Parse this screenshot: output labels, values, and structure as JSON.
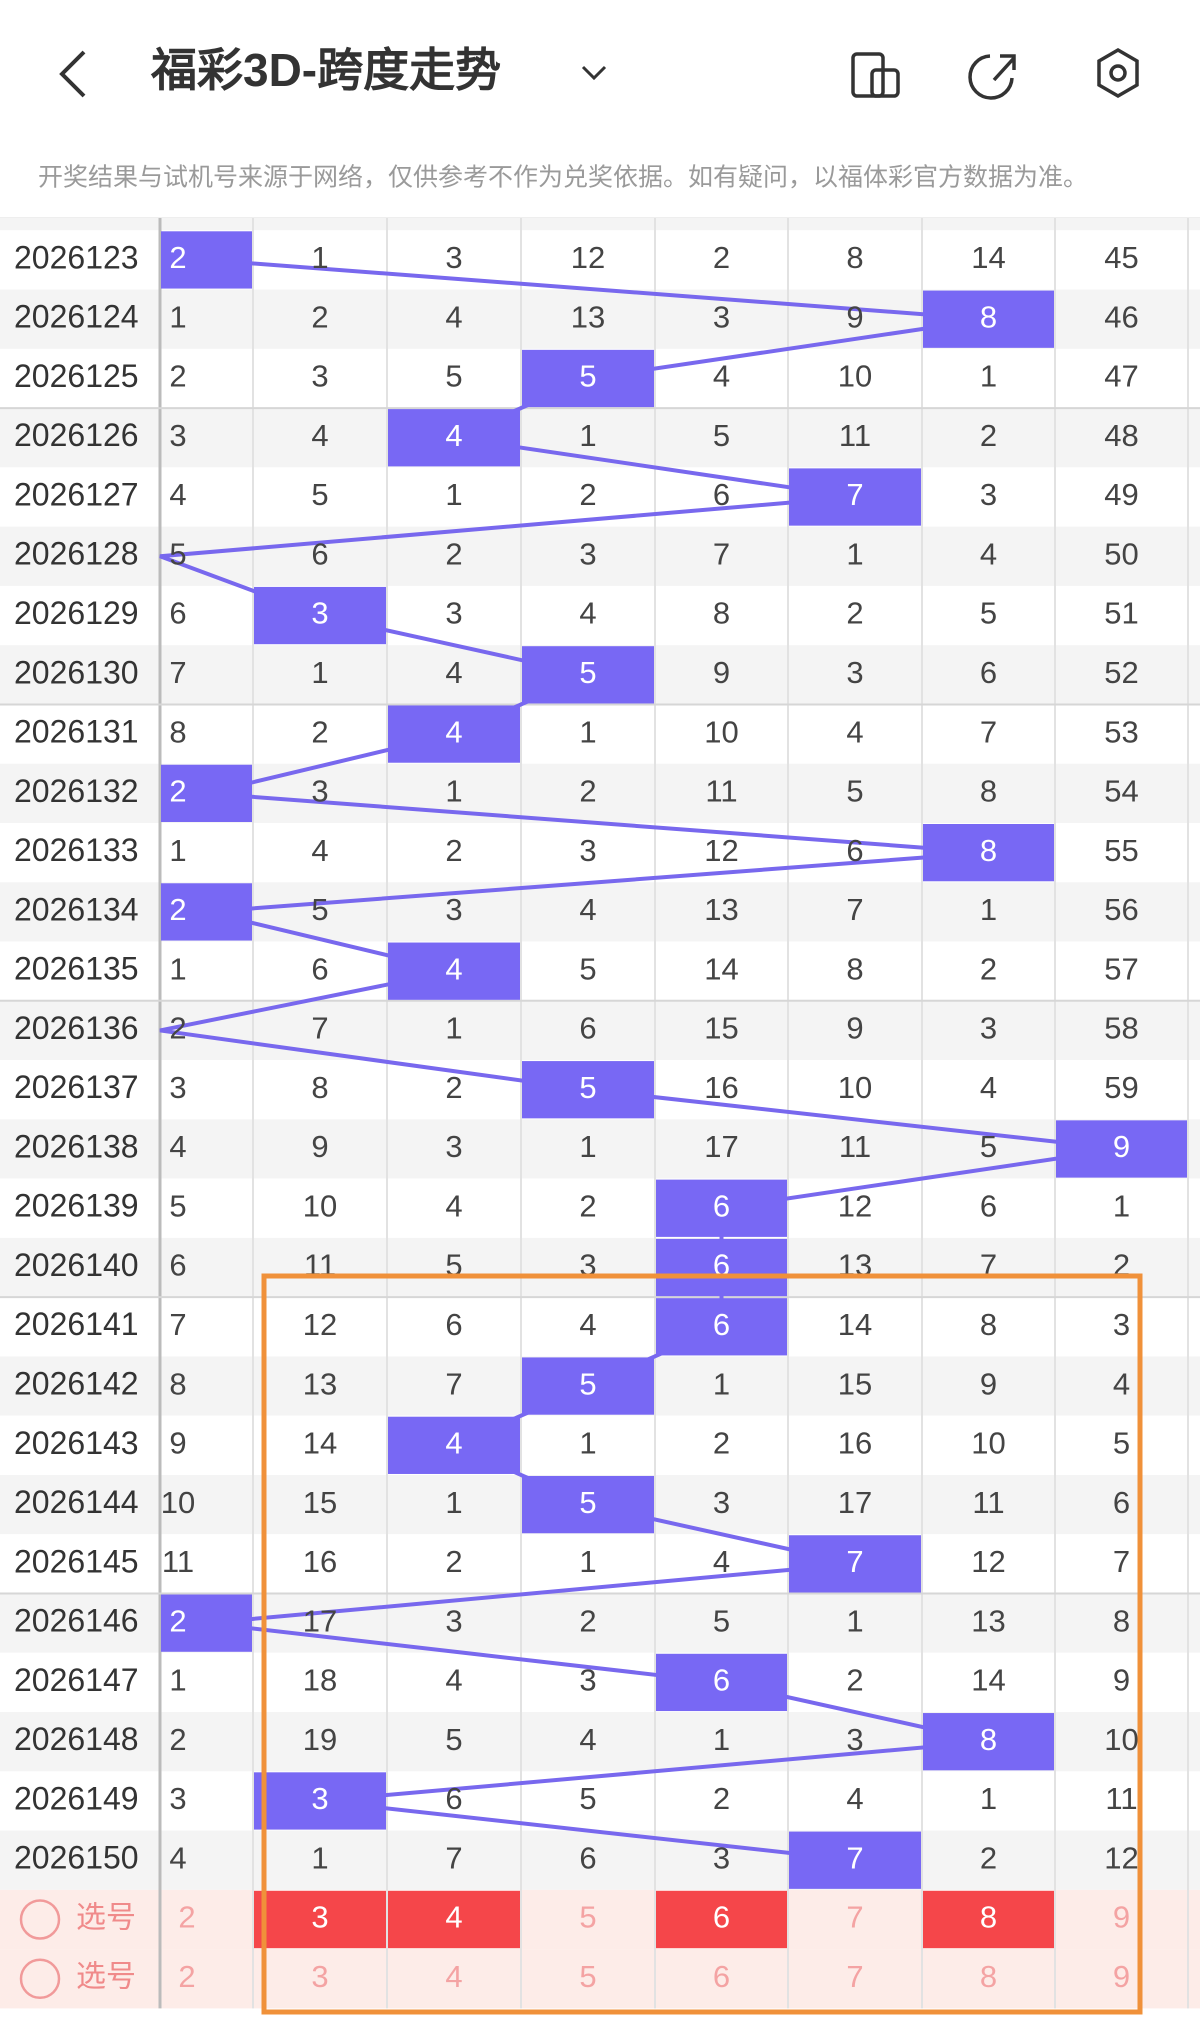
{
  "header": {
    "title": "福彩3D-跨度走势",
    "notice": "开奖结果与试机号来源于网络，仅供参考不作为兑奖依据。如有疑问，以福体彩官方数据为准。"
  },
  "table": {
    "rows": [
      {
        "period": "2026123",
        "cells": [
          2,
          1,
          3,
          12,
          2,
          8,
          14,
          45
        ],
        "hit": 0
      },
      {
        "period": "2026124",
        "cells": [
          1,
          2,
          4,
          13,
          3,
          9,
          8,
          46
        ],
        "hit": 6
      },
      {
        "period": "2026125",
        "cells": [
          2,
          3,
          5,
          5,
          4,
          10,
          1,
          47
        ],
        "hit": 3
      },
      {
        "period": "2026126",
        "cells": [
          3,
          4,
          4,
          1,
          5,
          11,
          2,
          48
        ],
        "hit": 2
      },
      {
        "period": "2026127",
        "cells": [
          4,
          5,
          1,
          2,
          6,
          7,
          3,
          49
        ],
        "hit": 5
      },
      {
        "period": "2026128",
        "cells": [
          5,
          6,
          2,
          3,
          7,
          1,
          4,
          50
        ],
        "hit": null
      },
      {
        "period": "2026129",
        "cells": [
          6,
          3,
          3,
          4,
          8,
          2,
          5,
          51
        ],
        "hit": 1
      },
      {
        "period": "2026130",
        "cells": [
          7,
          1,
          4,
          5,
          9,
          3,
          6,
          52
        ],
        "hit": 3
      },
      {
        "period": "2026131",
        "cells": [
          8,
          2,
          4,
          1,
          10,
          4,
          7,
          53
        ],
        "hit": 2
      },
      {
        "period": "2026132",
        "cells": [
          2,
          3,
          1,
          2,
          11,
          5,
          8,
          54
        ],
        "hit": 0
      },
      {
        "period": "2026133",
        "cells": [
          1,
          4,
          2,
          3,
          12,
          6,
          8,
          55
        ],
        "hit": 6
      },
      {
        "period": "2026134",
        "cells": [
          2,
          5,
          3,
          4,
          13,
          7,
          1,
          56
        ],
        "hit": 0
      },
      {
        "period": "2026135",
        "cells": [
          1,
          6,
          4,
          5,
          14,
          8,
          2,
          57
        ],
        "hit": 2
      },
      {
        "period": "2026136",
        "cells": [
          2,
          7,
          1,
          6,
          15,
          9,
          3,
          58
        ],
        "hit": null
      },
      {
        "period": "2026137",
        "cells": [
          3,
          8,
          2,
          5,
          16,
          10,
          4,
          59
        ],
        "hit": 3
      },
      {
        "period": "2026138",
        "cells": [
          4,
          9,
          3,
          1,
          17,
          11,
          5,
          9
        ],
        "hit": 7
      },
      {
        "period": "2026139",
        "cells": [
          5,
          10,
          4,
          2,
          6,
          12,
          6,
          1
        ],
        "hit": 4
      },
      {
        "period": "2026140",
        "cells": [
          6,
          11,
          5,
          3,
          6,
          13,
          7,
          2
        ],
        "hit": 4
      },
      {
        "period": "2026141",
        "cells": [
          7,
          12,
          6,
          4,
          6,
          14,
          8,
          3
        ],
        "hit": 4
      },
      {
        "period": "2026142",
        "cells": [
          8,
          13,
          7,
          5,
          1,
          15,
          9,
          4
        ],
        "hit": 3
      },
      {
        "period": "2026143",
        "cells": [
          9,
          14,
          4,
          1,
          2,
          16,
          10,
          5
        ],
        "hit": 2
      },
      {
        "period": "2026144",
        "cells": [
          10,
          15,
          1,
          5,
          3,
          17,
          11,
          6
        ],
        "hit": 3
      },
      {
        "period": "2026145",
        "cells": [
          11,
          16,
          2,
          1,
          4,
          7,
          12,
          7
        ],
        "hit": 5
      },
      {
        "period": "2026146",
        "cells": [
          2,
          17,
          3,
          2,
          5,
          1,
          13,
          8
        ],
        "hit": 0
      },
      {
        "period": "2026147",
        "cells": [
          1,
          18,
          4,
          3,
          6,
          2,
          14,
          9
        ],
        "hit": 4
      },
      {
        "period": "2026148",
        "cells": [
          2,
          19,
          5,
          4,
          1,
          3,
          8,
          10
        ],
        "hit": 6
      },
      {
        "period": "2026149",
        "cells": [
          3,
          3,
          6,
          5,
          2,
          4,
          1,
          11
        ],
        "hit": 1
      },
      {
        "period": "2026150",
        "cells": [
          4,
          1,
          7,
          6,
          3,
          7,
          2,
          12
        ],
        "hit": 5
      }
    ],
    "picks": [
      {
        "label": "选号",
        "numbers": [
          2,
          3,
          4,
          5,
          6,
          7,
          8,
          9
        ],
        "selected": [
          false,
          true,
          true,
          false,
          true,
          false,
          true,
          false
        ]
      },
      {
        "label": "选号",
        "numbers": [
          2,
          3,
          4,
          5,
          6,
          7,
          8,
          9
        ],
        "selected": [
          false,
          false,
          false,
          false,
          false,
          false,
          false,
          false
        ]
      }
    ]
  }
}
